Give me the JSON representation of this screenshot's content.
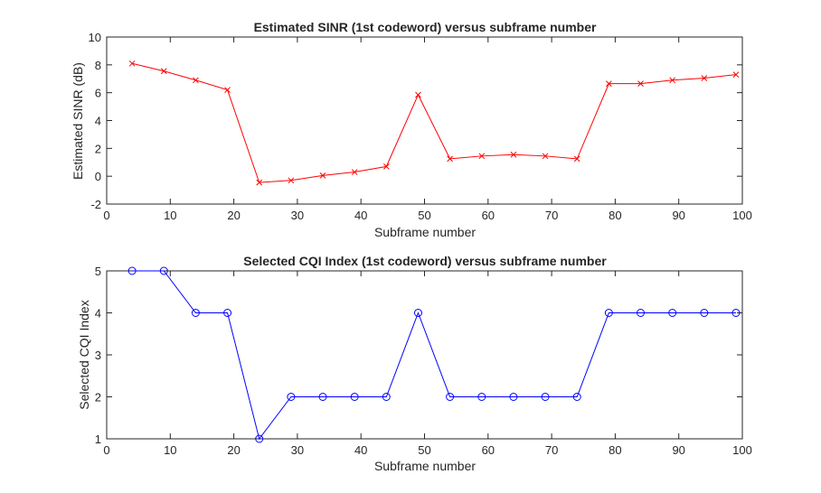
{
  "chart_data": [
    {
      "type": "line",
      "title": "Estimated SINR (1st codeword) versus subframe number",
      "xlabel": "Subframe number",
      "ylabel": "Estimated SINR (dB)",
      "xlim": [
        0,
        100
      ],
      "ylim": [
        -2,
        10
      ],
      "xticks": [
        0,
        10,
        20,
        30,
        40,
        50,
        60,
        70,
        80,
        90,
        100
      ],
      "yticks": [
        -2,
        0,
        2,
        4,
        6,
        8,
        10
      ],
      "grid": false,
      "series": [
        {
          "color": "#ff0000",
          "marker": "x",
          "x": [
            4,
            9,
            14,
            19,
            24,
            29,
            34,
            39,
            44,
            49,
            54,
            59,
            64,
            69,
            74,
            79,
            84,
            89,
            94,
            99
          ],
          "values": [
            8.1,
            7.55,
            6.9,
            6.2,
            -0.45,
            -0.3,
            0.05,
            0.3,
            0.7,
            5.85,
            1.25,
            1.45,
            1.55,
            1.45,
            1.25,
            6.65,
            6.65,
            6.9,
            7.05,
            7.3
          ]
        }
      ]
    },
    {
      "type": "line",
      "title": "Selected CQI Index (1st codeword) versus subframe number",
      "xlabel": "Subframe number",
      "ylabel": "Selected CQI Index",
      "xlim": [
        0,
        100
      ],
      "ylim": [
        1,
        5
      ],
      "xticks": [
        0,
        10,
        20,
        30,
        40,
        50,
        60,
        70,
        80,
        90,
        100
      ],
      "yticks": [
        1,
        2,
        3,
        4,
        5
      ],
      "grid": false,
      "series": [
        {
          "color": "#0000ff",
          "marker": "o",
          "x": [
            4,
            9,
            14,
            19,
            24,
            29,
            34,
            39,
            44,
            49,
            54,
            59,
            64,
            69,
            74,
            79,
            84,
            89,
            94,
            99
          ],
          "values": [
            5,
            5,
            4,
            4,
            1,
            2,
            2,
            2,
            2,
            4,
            2,
            2,
            2,
            2,
            2,
            4,
            4,
            4,
            4,
            4
          ]
        }
      ]
    }
  ]
}
